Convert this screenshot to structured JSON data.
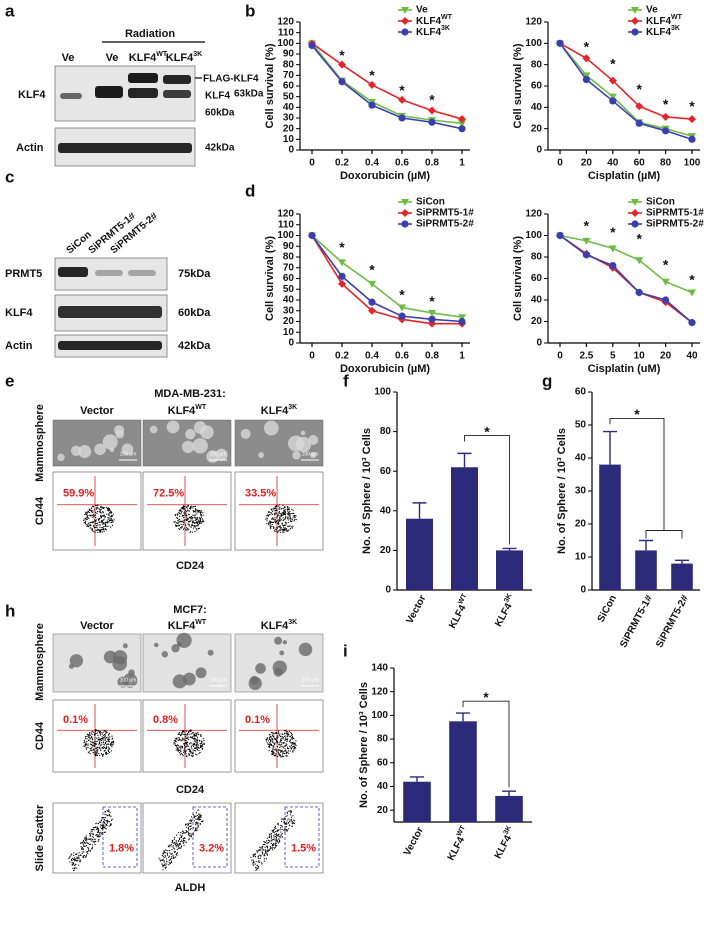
{
  "panel_labels": [
    "a",
    "b",
    "c",
    "d",
    "e",
    "f",
    "g",
    "h",
    "i"
  ],
  "panel_a": {
    "header": "Radiation",
    "lanes": [
      {
        "text": "Ve"
      },
      {
        "text": "Ve"
      },
      {
        "text": "KLF4",
        "sup": "WT"
      },
      {
        "text": "KLF4",
        "sup": "3K"
      }
    ],
    "rows": [
      "KLF4",
      "Actin"
    ],
    "annotations": [
      "FLAG-KLF4",
      "KLF4",
      "63kDa",
      "60kDa",
      "42kDa"
    ]
  },
  "panel_c": {
    "lanes": [
      "SiCon",
      "SiPRMT5-1#",
      "SiPRMT5-2#"
    ],
    "rows": [
      {
        "label": "PRMT5",
        "size": "75kDa"
      },
      {
        "label": "KLF4",
        "size": "60kDa"
      },
      {
        "label": "Actin",
        "size": "42kDa"
      }
    ]
  },
  "panel_e": {
    "title": "MDA-MB-231:",
    "columns": [
      {
        "text": "Vector"
      },
      {
        "text": "KLF4",
        "sup": "WT"
      },
      {
        "text": "KLF4",
        "sup": "3K"
      }
    ],
    "image_label": "Mammosphere",
    "scale_bar": "100 µm",
    "flow": {
      "y_label": "CD44",
      "x_label": "CD24",
      "percents": [
        "59.9%",
        "72.5%",
        "33.5%"
      ]
    }
  },
  "panel_h": {
    "title": "MCF7:",
    "columns": [
      {
        "text": "Vector"
      },
      {
        "text": "KLF4",
        "sup": "WT"
      },
      {
        "text": "KLF4",
        "sup": "3K"
      }
    ],
    "image_label": "Mammosphere",
    "scale_bar": "100 µm",
    "flow": {
      "y_label": "CD44",
      "x_label": "CD24",
      "percents": [
        "0.1%",
        "0.8%",
        "0.1%"
      ]
    },
    "aldh": {
      "y_label": "Slide Scatter",
      "x_label": "ALDH",
      "percents": [
        "1.8%",
        "3.2%",
        "1.5%"
      ]
    }
  },
  "chart_data": [
    {
      "type": "line",
      "x_label": "Doxorubicin (µM)",
      "y_label": "Cell survival (%)",
      "categories": [
        0,
        0.2,
        0.4,
        0.6,
        0.8,
        1
      ],
      "ylim": [
        0,
        120
      ],
      "yticks": [
        0,
        10,
        20,
        30,
        40,
        50,
        60,
        70,
        80,
        90,
        100,
        110,
        120
      ],
      "legend": "upper right",
      "series": [
        {
          "name": "Ve",
          "color": "#6cbd45",
          "marker": "triangle",
          "values": [
            100,
            65,
            45,
            32,
            28,
            25
          ]
        },
        {
          "name": "KLF4",
          "name_sup": "WT",
          "color": "#e3262b",
          "marker": "diamond",
          "values": [
            100,
            80,
            61,
            47,
            37,
            29
          ]
        },
        {
          "name": "KLF4",
          "name_sup": "3K",
          "color": "#3b3fae",
          "marker": "circle",
          "values": [
            98,
            64,
            42,
            30,
            26,
            20
          ]
        }
      ],
      "stars": [
        {
          "x": 0.2,
          "y": 88,
          "label": "*"
        },
        {
          "x": 0.4,
          "y": 69,
          "label": "*"
        },
        {
          "x": 0.6,
          "y": 55,
          "label": "*"
        },
        {
          "x": 0.8,
          "y": 46,
          "label": "*"
        }
      ]
    },
    {
      "type": "line",
      "x_label": "Cisplatin (µM)",
      "y_label": "Cell survival (%)",
      "categories": [
        0,
        20,
        40,
        60,
        80,
        100
      ],
      "ylim": [
        0,
        120
      ],
      "yticks": [
        0,
        20,
        40,
        60,
        80,
        100,
        120
      ],
      "legend": "upper right",
      "series": [
        {
          "name": "Ve",
          "color": "#6cbd45",
          "marker": "triangle",
          "values": [
            100,
            70,
            50,
            26,
            20,
            13
          ]
        },
        {
          "name": "KLF4",
          "name_sup": "WT",
          "color": "#e3262b",
          "marker": "diamond",
          "values": [
            100,
            86,
            65,
            41,
            31,
            29
          ]
        },
        {
          "name": "KLF4",
          "name_sup": "3K",
          "color": "#3b3fae",
          "marker": "circle",
          "values": [
            100,
            66,
            46,
            25,
            18,
            10
          ]
        }
      ],
      "stars": [
        {
          "x": 20,
          "y": 96,
          "label": "*"
        },
        {
          "x": 40,
          "y": 80,
          "label": "*"
        },
        {
          "x": 60,
          "y": 56,
          "label": "*"
        },
        {
          "x": 80,
          "y": 42,
          "label": "*"
        },
        {
          "x": 100,
          "y": 40,
          "label": "*"
        }
      ]
    },
    {
      "type": "line",
      "x_label": "Doxorubicin (µM)",
      "y_label": "Cell survival (%)",
      "categories": [
        0,
        0.2,
        0.4,
        0.6,
        0.8,
        1
      ],
      "ylim": [
        0,
        120
      ],
      "yticks": [
        0,
        10,
        20,
        30,
        40,
        50,
        60,
        70,
        80,
        90,
        100,
        110,
        120
      ],
      "legend": "upper right",
      "series": [
        {
          "name": "SiCon",
          "color": "#6cbd45",
          "marker": "triangle",
          "values": [
            100,
            75,
            55,
            33,
            28,
            24
          ]
        },
        {
          "name": "SiPRMT5-1#",
          "color": "#e3262b",
          "marker": "diamond",
          "values": [
            100,
            55,
            30,
            22,
            18,
            18
          ]
        },
        {
          "name": "SiPRMT5-2#",
          "color": "#3b3fae",
          "marker": "circle",
          "values": [
            100,
            62,
            38,
            25,
            22,
            20
          ]
        }
      ],
      "stars": [
        {
          "x": 0.2,
          "y": 88,
          "label": "*"
        },
        {
          "x": 0.4,
          "y": 67,
          "label": "*"
        },
        {
          "x": 0.6,
          "y": 44,
          "label": "*"
        },
        {
          "x": 0.8,
          "y": 38,
          "label": "*"
        }
      ]
    },
    {
      "type": "line",
      "x_label": "Cisplatin (uM)",
      "y_label": "Cell survival (%)",
      "categories": [
        0,
        2.5,
        5,
        10,
        20,
        40
      ],
      "ylim": [
        0,
        120
      ],
      "yticks": [
        0,
        20,
        40,
        60,
        80,
        100,
        120
      ],
      "legend": "upper right",
      "series": [
        {
          "name": "SiCon",
          "color": "#6cbd45",
          "marker": "triangle",
          "values": [
            100,
            95,
            88,
            77,
            57,
            47
          ]
        },
        {
          "name": "SiPRMT5-1#",
          "color": "#e3262b",
          "marker": "diamond",
          "values": [
            100,
            83,
            70,
            47,
            38,
            19
          ]
        },
        {
          "name": "SiPRMT5-2#",
          "color": "#3b3fae",
          "marker": "circle",
          "values": [
            100,
            82,
            72,
            47,
            40,
            19
          ]
        }
      ],
      "stars": [
        {
          "x": 2.5,
          "y": 108,
          "label": "*"
        },
        {
          "x": 5,
          "y": 102,
          "label": "*"
        },
        {
          "x": 10,
          "y": 96,
          "label": "*"
        },
        {
          "x": 20,
          "y": 72,
          "label": "*"
        },
        {
          "x": 40,
          "y": 58,
          "label": "*"
        }
      ]
    },
    {
      "type": "bar",
      "y_label": "No. of Sphere / 10³ Cells",
      "categories": [
        "Vector",
        "KLF4",
        "KLF4"
      ],
      "category_sups": [
        null,
        "WT",
        "3K"
      ],
      "values": [
        36,
        62,
        20
      ],
      "errors": [
        8,
        7,
        1
      ],
      "color": "#2b2b7a",
      "ylim": [
        0,
        100
      ],
      "yticks": [
        0,
        20,
        40,
        60,
        80,
        100
      ],
      "significance": [
        {
          "from": 1,
          "to": [
            2
          ],
          "y": 78,
          "label": "*"
        }
      ]
    },
    {
      "type": "bar",
      "y_label": "No. of Sphere / 10³ Cells",
      "categories": [
        "SiCon",
        "SiPRMT5-1#",
        "SiPRMT5-2#"
      ],
      "category_sups": [
        null,
        null,
        null
      ],
      "values": [
        38,
        12,
        8
      ],
      "errors": [
        10,
        3,
        1
      ],
      "color": "#2b2b7a",
      "ylim": [
        0,
        60
      ],
      "yticks": [
        0,
        10,
        20,
        30,
        40,
        50,
        60
      ],
      "significance": [
        {
          "from": 0,
          "to": [
            1,
            2
          ],
          "y": 52,
          "label": "*"
        }
      ]
    },
    {
      "type": "bar",
      "y_label": "No. of Sphere / 10³ Cells",
      "categories": [
        "Vector",
        "KLF4",
        "KLF4"
      ],
      "category_sups": [
        null,
        "WT",
        "3K"
      ],
      "values": [
        44,
        95,
        32
      ],
      "errors": [
        4,
        7,
        4
      ],
      "color": "#2b2b7a",
      "ylim": [
        10,
        140
      ],
      "yticks": [
        20,
        40,
        60,
        80,
        100,
        120,
        140
      ],
      "significance": [
        {
          "from": 1,
          "to": [
            2
          ],
          "y": 112,
          "label": "*"
        }
      ]
    }
  ]
}
